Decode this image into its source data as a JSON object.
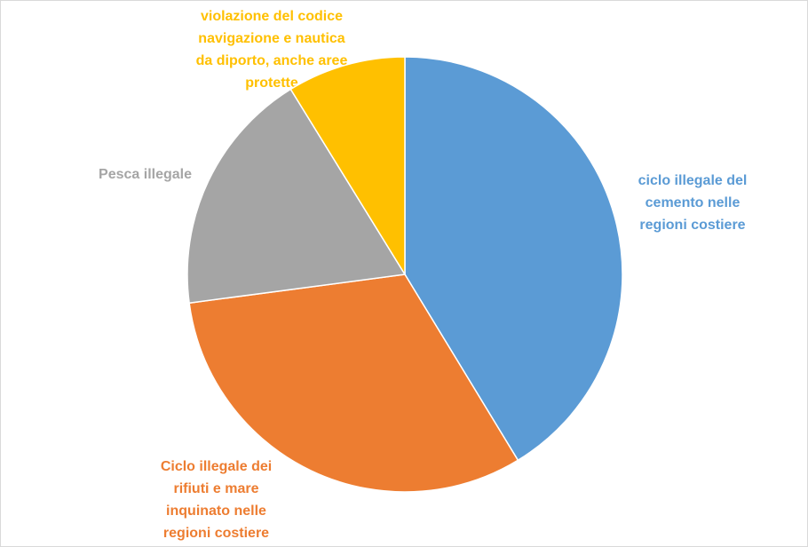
{
  "chart_data": {
    "type": "pie",
    "categories": [
      "ciclo illegale del cemento nelle regioni costiere",
      "Ciclo illegale dei rifiuti e mare inquinato nelle regioni costiere",
      "Pesca illegale",
      "violazione del codice navigazione e nautica da diporto, anche aree protette"
    ],
    "values": [
      41.3,
      31.6,
      18.3,
      8.8
    ],
    "colors": [
      "#5b9bd5",
      "#ed7d31",
      "#a5a5a5",
      "#ffc000"
    ]
  }
}
